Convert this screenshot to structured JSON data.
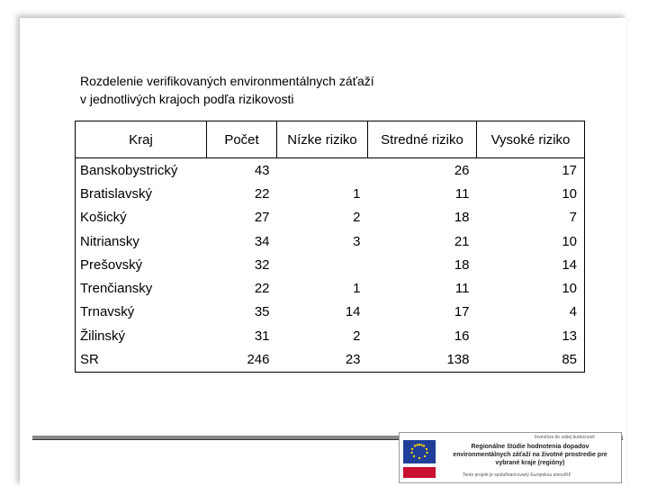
{
  "title_lines": [
    "Rozdelenie verifikovaných environmentálnych záťaží",
    "v jednotlivých krajoch podľa rizikovosti"
  ],
  "table": {
    "header": [
      "Kraj",
      "Počet",
      "Nízke riziko",
      "Stredné riziko",
      "Vysoké riziko"
    ],
    "rows": [
      [
        "Banskobystrický",
        43,
        null,
        26,
        17
      ],
      [
        "Bratislavský",
        22,
        1,
        11,
        10
      ],
      [
        "Košický",
        27,
        2,
        18,
        7
      ],
      [
        "Nitriansky",
        34,
        3,
        21,
        10
      ],
      [
        "Prešovský",
        32,
        null,
        18,
        14
      ],
      [
        "Trenčiansky",
        22,
        1,
        11,
        10
      ],
      [
        "Trnavský",
        35,
        14,
        17,
        4
      ],
      [
        "Žilinský",
        31,
        2,
        16,
        13
      ],
      [
        "SR",
        246,
        23,
        138,
        85
      ]
    ]
  },
  "footer": {
    "tagline": "Investícia do vašej budúcnosti",
    "project": "Regionálne štúdie hodnotenia dopadov environmentálnych záťaží na životné prostredie pre vybrané kraje (regióny)",
    "note": "Tento projekt je spolufinancovaný Európskou úniou/KF"
  }
}
